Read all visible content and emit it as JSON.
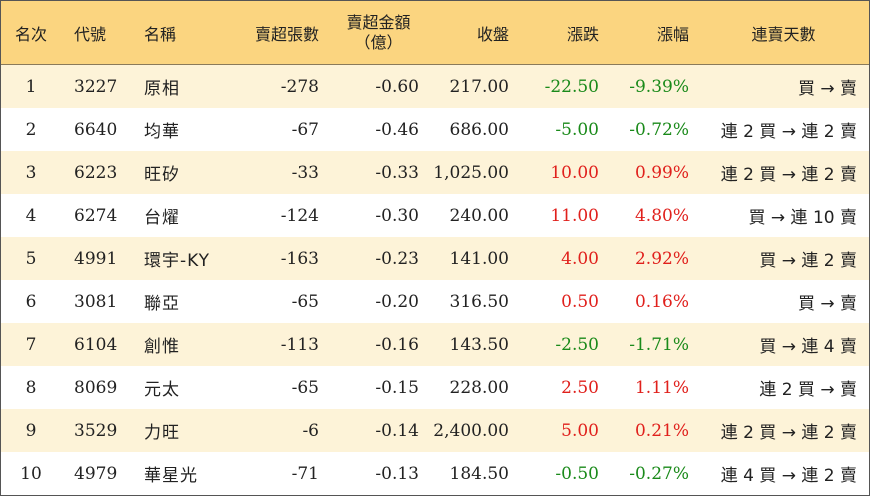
{
  "chart_data": {
    "type": "table",
    "columns": {
      "rank": "名次",
      "code": "代號",
      "name": "名稱",
      "net_sell_lots": "賣超張數",
      "net_sell_amount_line1": "賣超金額",
      "net_sell_amount_line2": "（億）",
      "close": "收盤",
      "change": "漲跌",
      "pct_change": "漲幅",
      "streak": "連賣天數"
    },
    "rows": [
      {
        "rank": "1",
        "code": "3227",
        "name": "原相",
        "net_sell_lots": "-278",
        "net_sell_amount": "-0.60",
        "close": "217.00",
        "change": "-22.50",
        "pct_change": "-9.39%",
        "streak": "買 → 賣",
        "direction": "down"
      },
      {
        "rank": "2",
        "code": "6640",
        "name": "均華",
        "net_sell_lots": "-67",
        "net_sell_amount": "-0.46",
        "close": "686.00",
        "change": "-5.00",
        "pct_change": "-0.72%",
        "streak": "連 2 買 → 連 2 賣",
        "direction": "down"
      },
      {
        "rank": "3",
        "code": "6223",
        "name": "旺矽",
        "net_sell_lots": "-33",
        "net_sell_amount": "-0.33",
        "close": "1,025.00",
        "change": "10.00",
        "pct_change": "0.99%",
        "streak": "連 2 買 → 連 2 賣",
        "direction": "up"
      },
      {
        "rank": "4",
        "code": "6274",
        "name": "台燿",
        "net_sell_lots": "-124",
        "net_sell_amount": "-0.30",
        "close": "240.00",
        "change": "11.00",
        "pct_change": "4.80%",
        "streak": "買 → 連 10 賣",
        "direction": "up"
      },
      {
        "rank": "5",
        "code": "4991",
        "name": "環宇-KY",
        "net_sell_lots": "-163",
        "net_sell_amount": "-0.23",
        "close": "141.00",
        "change": "4.00",
        "pct_change": "2.92%",
        "streak": "買 → 連 2 賣",
        "direction": "up"
      },
      {
        "rank": "6",
        "code": "3081",
        "name": "聯亞",
        "net_sell_lots": "-65",
        "net_sell_amount": "-0.20",
        "close": "316.50",
        "change": "0.50",
        "pct_change": "0.16%",
        "streak": "買 → 賣",
        "direction": "up"
      },
      {
        "rank": "7",
        "code": "6104",
        "name": "創惟",
        "net_sell_lots": "-113",
        "net_sell_amount": "-0.16",
        "close": "143.50",
        "change": "-2.50",
        "pct_change": "-1.71%",
        "streak": "買 → 連 4 賣",
        "direction": "down"
      },
      {
        "rank": "8",
        "code": "8069",
        "name": "元太",
        "net_sell_lots": "-65",
        "net_sell_amount": "-0.15",
        "close": "228.00",
        "change": "2.50",
        "pct_change": "1.11%",
        "streak": "連 2 買 → 賣",
        "direction": "up"
      },
      {
        "rank": "9",
        "code": "3529",
        "name": "力旺",
        "net_sell_lots": "-6",
        "net_sell_amount": "-0.14",
        "close": "2,400.00",
        "change": "5.00",
        "pct_change": "0.21%",
        "streak": "連 2 買 → 連 2 賣",
        "direction": "up"
      },
      {
        "rank": "10",
        "code": "4979",
        "name": "華星光",
        "net_sell_lots": "-71",
        "net_sell_amount": "-0.13",
        "close": "184.50",
        "change": "-0.50",
        "pct_change": "-0.27%",
        "streak": "連 4 買 → 連 2 賣",
        "direction": "down"
      }
    ]
  },
  "colors": {
    "header_bg": "#fbd580",
    "stripe_bg": "#fdf3d8",
    "plain_bg": "#ffffff",
    "up": "#e0201c",
    "down": "#1a8a1a",
    "text": "#222222"
  }
}
